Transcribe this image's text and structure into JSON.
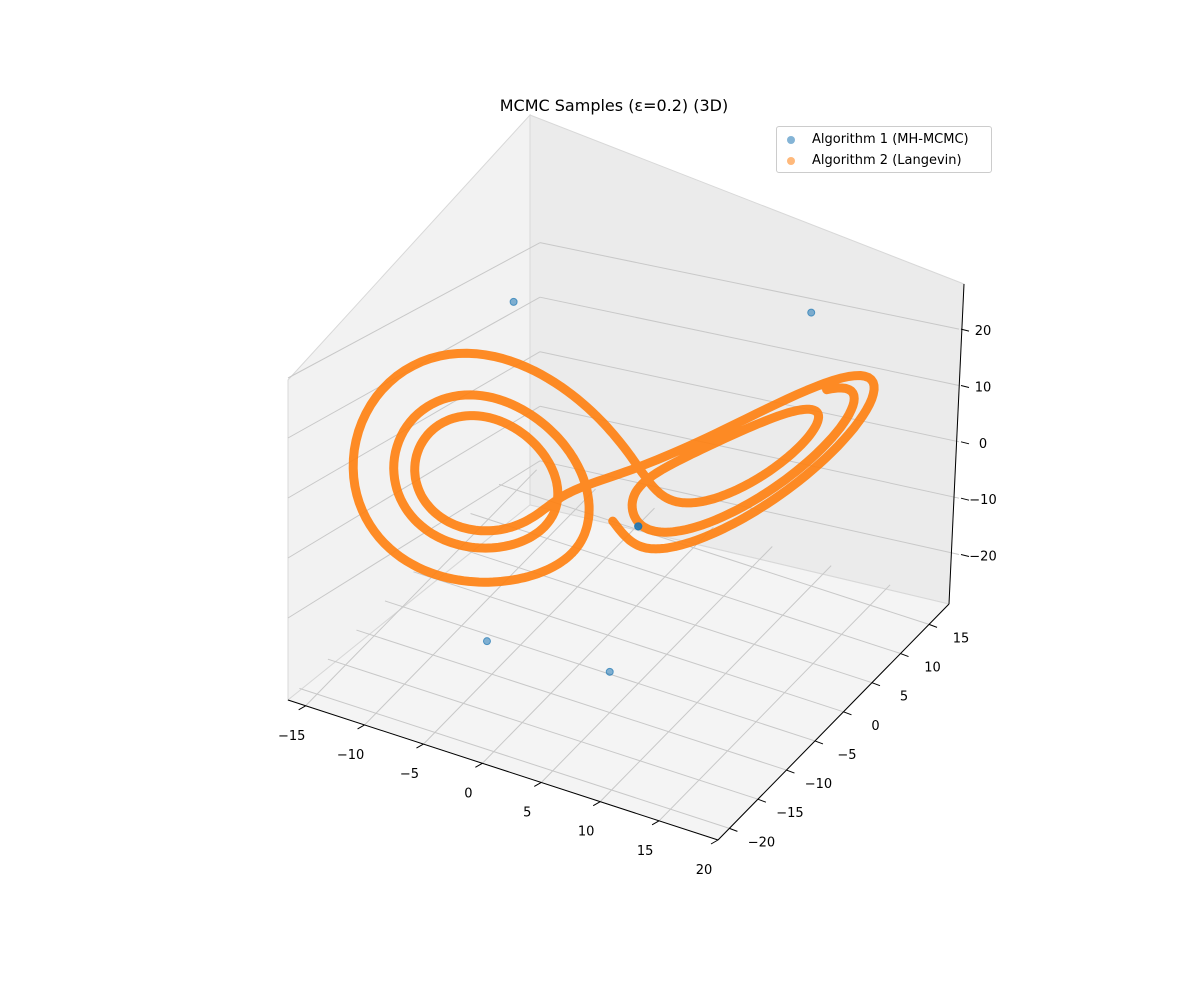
{
  "chart_data": {
    "type": "scatter",
    "title": "MCMC Samples (ε=0.2) (3D)",
    "xlabel": "",
    "ylabel": "",
    "zlabel": "",
    "xlim": [
      -16.5,
      20
    ],
    "ylim": [
      -22,
      18.5
    ],
    "zlim": [
      -27,
      28
    ],
    "x_ticks": [
      -15,
      -10,
      -5,
      0,
      5,
      10,
      15,
      20
    ],
    "y_ticks": [
      -20,
      -15,
      -10,
      -5,
      0,
      5,
      10,
      15
    ],
    "z_ticks": [
      -20,
      -10,
      0,
      10,
      20
    ],
    "grid": true,
    "legend_position": "top-right",
    "series": [
      {
        "name": "Algorithm 1 (MH-MCMC)",
        "color": "#1f77b4",
        "points": [
          [
            5,
            -5,
            0
          ],
          [
            5,
            -5,
            0
          ],
          [
            5,
            -5,
            0
          ],
          [
            -8,
            0,
            25
          ],
          [
            10,
            15,
            20
          ],
          [
            -3,
            -15,
            -15
          ],
          [
            5,
            -10,
            -20
          ]
        ]
      },
      {
        "name": "Algorithm 2 (Langevin)",
        "color": "#ff7f0e",
        "sigma": 10,
        "rho": 28,
        "beta": 2.6667,
        "dt": 0.005,
        "steps": 800,
        "start": [
          -1,
          3,
          15
        ]
      }
    ]
  }
}
